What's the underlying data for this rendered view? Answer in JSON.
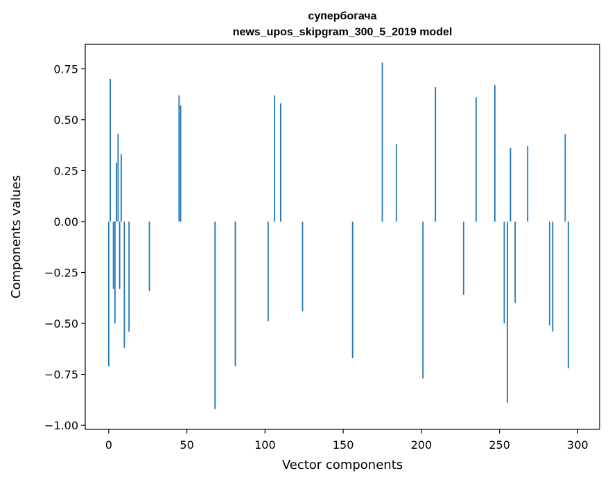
{
  "chart_data": {
    "type": "bar",
    "title": "супербогача",
    "subtitle": "news_upos_skipgram_300_5_2019 model",
    "xlabel": "Vector components",
    "ylabel": "Components values",
    "xlim": [
      -15,
      314
    ],
    "ylim": [
      -1.02,
      0.87
    ],
    "xticks": [
      0,
      50,
      100,
      150,
      200,
      250,
      300
    ],
    "xtick_labels": [
      "0",
      "50",
      "100",
      "150",
      "200",
      "250",
      "300"
    ],
    "yticks": [
      0.75,
      0.5,
      0.25,
      0.0,
      -0.25,
      -0.5,
      -0.75,
      -1.0
    ],
    "ytick_labels": [
      "0.75",
      "0.50",
      "0.25",
      "0.00",
      "−0.25",
      "−0.50",
      "−0.75",
      "−1.00"
    ],
    "grid": false,
    "bar_color": "#1f77b4",
    "x": [
      0,
      1,
      3,
      4,
      5,
      6,
      7,
      8,
      10,
      13,
      26,
      45,
      46,
      68,
      81,
      102,
      106,
      110,
      124,
      156,
      175,
      184,
      201,
      209,
      227,
      235,
      247,
      253,
      255,
      257,
      260,
      268,
      282,
      284,
      292,
      294
    ],
    "values": [
      -0.71,
      0.7,
      -0.33,
      -0.5,
      0.29,
      0.43,
      -0.33,
      0.33,
      -0.62,
      -0.54,
      -0.34,
      0.62,
      0.57,
      -0.92,
      -0.71,
      -0.49,
      0.62,
      0.58,
      -0.44,
      -0.67,
      0.78,
      0.38,
      -0.77,
      0.66,
      -0.36,
      0.61,
      0.67,
      -0.5,
      -0.89,
      0.36,
      -0.4,
      0.37,
      -0.51,
      -0.54,
      0.43,
      -0.72
    ]
  }
}
